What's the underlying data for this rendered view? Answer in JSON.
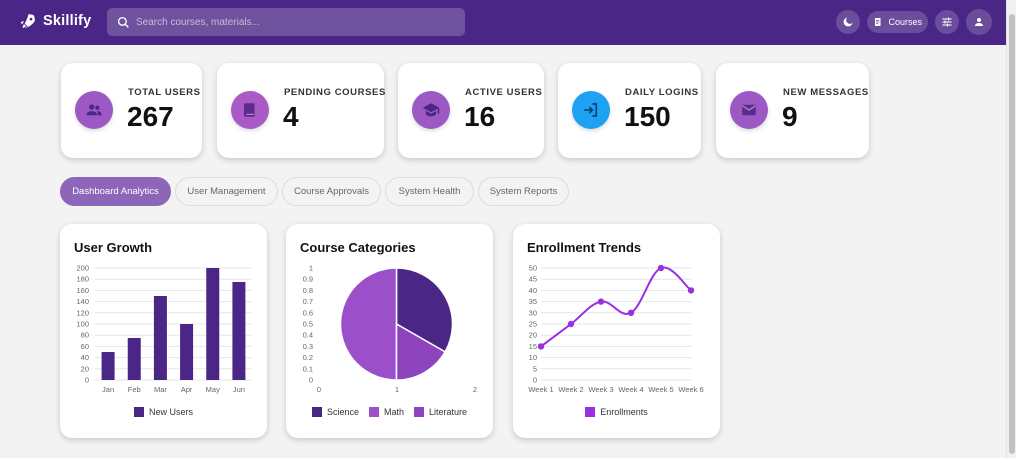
{
  "brand": {
    "name": "Skillify"
  },
  "search": {
    "placeholder": "Search courses, materials..."
  },
  "header": {
    "courses_label": "Courses"
  },
  "stats": [
    {
      "label": "TOTAL USERS",
      "value": "267",
      "icon": "users-icon",
      "color": "#9c59c4"
    },
    {
      "label": "PENDING COURSES",
      "value": "4",
      "icon": "book-icon",
      "color": "#a85bc6"
    },
    {
      "label": "ACTIVE USERS",
      "value": "16",
      "icon": "graduation-cap-icon",
      "color": "#9c59c4"
    },
    {
      "label": "DAILY LOGINS",
      "value": "150",
      "icon": "login-icon",
      "color": "#1da1f2"
    },
    {
      "label": "NEW MESSAGES",
      "value": "9",
      "icon": "mail-icon",
      "color": "#9c59c4"
    }
  ],
  "tabs": [
    {
      "label": "Dashboard Analytics",
      "active": true
    },
    {
      "label": "User Management",
      "active": false
    },
    {
      "label": "Course Approvals",
      "active": false
    },
    {
      "label": "System Health",
      "active": false
    },
    {
      "label": "System Reports",
      "active": false
    }
  ],
  "colors": {
    "header": "#4a2786",
    "accent": "#8e66b9",
    "bar": "#4a2786",
    "line": "#9b30e0"
  },
  "chart_data": [
    {
      "type": "bar",
      "title": "User Growth",
      "categories": [
        "Jan",
        "Feb",
        "Mar",
        "Apr",
        "May",
        "Jun"
      ],
      "series": [
        {
          "name": "New Users",
          "values": [
            50,
            75,
            150,
            100,
            200,
            175
          ],
          "color": "#4a2786"
        }
      ],
      "ylim": [
        0,
        200
      ],
      "yticks": [
        0,
        20,
        40,
        60,
        80,
        100,
        120,
        140,
        160,
        180,
        200
      ],
      "grid": true,
      "legend": "bottom"
    },
    {
      "type": "pie",
      "title": "Course Categories",
      "slices": [
        {
          "name": "Science",
          "value": 33.3,
          "color": "#4a2786"
        },
        {
          "name": "Math",
          "value": 50,
          "color": "#9b4fc9"
        },
        {
          "name": "Literature",
          "value": 16.7,
          "color": "#8e44bd"
        }
      ],
      "yticks": [
        "0",
        "0.1",
        "0.2",
        "0.3",
        "0.4",
        "0.5",
        "0.6",
        "0.7",
        "0.8",
        "0.9",
        "1"
      ],
      "xticks": [
        "0",
        "1",
        "2"
      ],
      "legend": "bottom"
    },
    {
      "type": "line",
      "title": "Enrollment Trends",
      "categories": [
        "Week 1",
        "Week 2",
        "Week 3",
        "Week 4",
        "Week 5",
        "Week 6"
      ],
      "series": [
        {
          "name": "Enrollments",
          "values": [
            15,
            25,
            35,
            30,
            50,
            40
          ],
          "color": "#9b30e0"
        }
      ],
      "ylim": [
        0,
        50
      ],
      "yticks": [
        0,
        5,
        10,
        15,
        20,
        25,
        30,
        35,
        40,
        45,
        50
      ],
      "grid": true,
      "legend": "bottom"
    }
  ]
}
